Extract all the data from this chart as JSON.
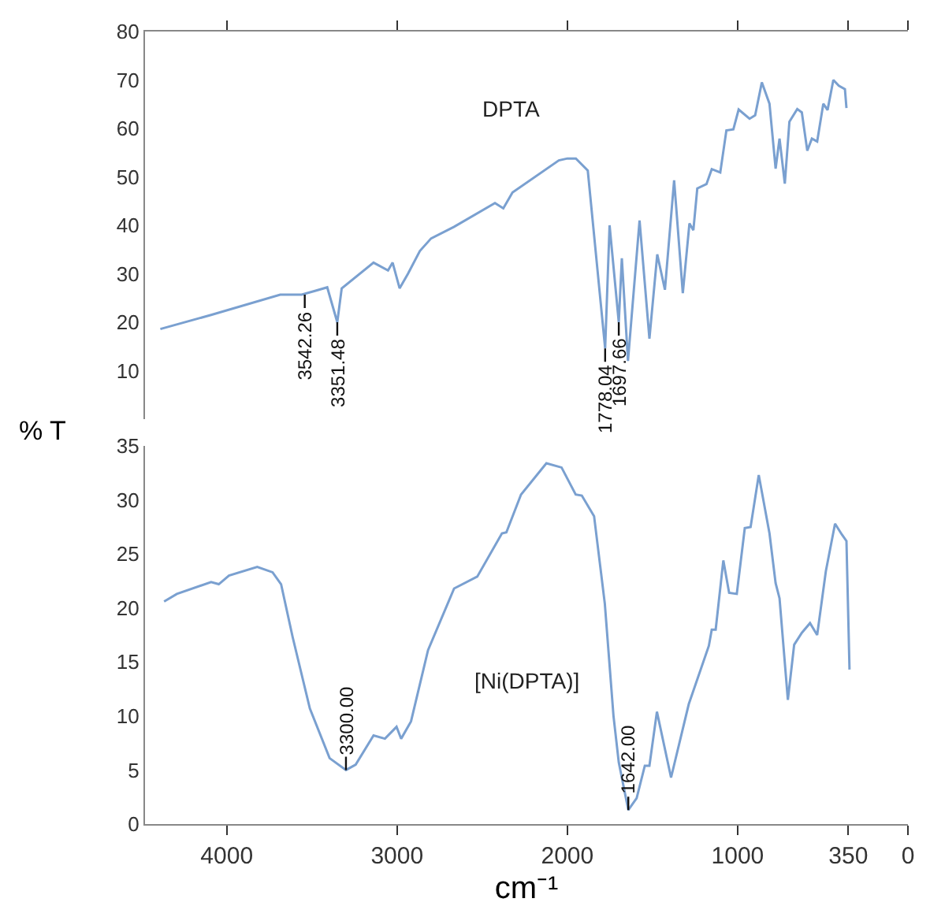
{
  "chart_data": [
    {
      "type": "line",
      "tick_labels": "y",
      "grid": false,
      "marker": "none",
      "line_style": "solid",
      "xlim": [
        4480,
        0
      ],
      "xticks": [
        4000,
        3000,
        2000,
        1000,
        350,
        0
      ],
      "ylim": [
        0,
        80
      ],
      "yticks": [
        10,
        20,
        30,
        40,
        50,
        60,
        70,
        80
      ],
      "annotations": [
        "DPTA",
        {
          "text": "3542.26",
          "x": 3542,
          "y": 25.7
        },
        {
          "text": "3351.48",
          "x": 3351,
          "y": 20
        },
        {
          "text": "1778.04",
          "x": 1778,
          "y": 14.6
        },
        {
          "text": "1697.66",
          "x": 1698,
          "y": 20
        }
      ],
      "series": [
        {
          "color": "#7aa0d0",
          "x": [
            4390,
            4092,
            3686,
            3560,
            3478,
            3410,
            3351,
            3325,
            3138,
            3053,
            3026,
            2985,
            2936,
            2866,
            2800,
            2665,
            2425,
            2376,
            2322,
            2050,
            2000,
            1950,
            1880,
            1778,
            1752,
            1698,
            1680,
            1644,
            1576,
            1518,
            1472,
            1427,
            1373,
            1322,
            1283,
            1260,
            1237,
            1183,
            1152,
            1102,
            1066,
            1025,
            994,
            930,
            897,
            858,
            813,
            777,
            754,
            723,
            696,
            650,
            623,
            591,
            564,
            533,
            497,
            472,
            438,
            406,
            370,
            361
          ],
          "values": [
            18.6,
            21.5,
            25.7,
            25.7,
            26.5,
            27.2,
            20,
            27,
            32.3,
            30.7,
            32.3,
            27,
            30,
            34.7,
            37.3,
            39.7,
            44.6,
            43.5,
            46.8,
            53.4,
            53.8,
            53.8,
            51.3,
            14.6,
            40,
            20,
            33.2,
            12,
            41,
            16.6,
            34,
            26.7,
            49.3,
            26,
            40.4,
            39,
            47.6,
            48.5,
            51.6,
            50.9,
            59.6,
            59.8,
            63.9,
            62,
            62.7,
            69.5,
            65.1,
            51.7,
            57.9,
            48.6,
            61.4,
            64,
            63.3,
            55.4,
            57.9,
            57.3,
            65.1,
            63.8,
            70,
            68.8,
            68.1,
            64.2
          ]
        }
      ]
    },
    {
      "type": "line",
      "grid": false,
      "marker": "none",
      "line_style": "solid",
      "xlabel": "cm⁻¹",
      "ylabel": "% T",
      "xlim": [
        4480,
        0
      ],
      "xticks": [
        4000,
        3000,
        2000,
        1000,
        350,
        0
      ],
      "ylim": [
        0,
        35
      ],
      "yticks": [
        0,
        5,
        10,
        15,
        20,
        25,
        30,
        35
      ],
      "annotations": [
        "[Ni(DPTA)]",
        {
          "text": "3300.00",
          "x": 3300,
          "y": 5
        },
        {
          "text": "1642.00",
          "x": 1642,
          "y": 1.3
        }
      ],
      "series": [
        {
          "color": "#7aa0d0",
          "x": [
            4368,
            4293,
            4092,
            4047,
            3987,
            3821,
            3731,
            3681,
            3613,
            3512,
            3396,
            3300,
            3243,
            3138,
            3071,
            3003,
            2976,
            2918,
            2818,
            2665,
            2529,
            2384,
            2358,
            2272,
            2123,
            2034,
            1951,
            1915,
            1843,
            1780,
            1729,
            1698,
            1642,
            1593,
            1545,
            1518,
            1474,
            1391,
            1287,
            1169,
            1152,
            1129,
            1084,
            1050,
            1005,
            958,
            924,
            876,
            813,
            777,
            754,
            705,
            668,
            623,
            575,
            533,
            482,
            428,
            388,
            361,
            343
          ],
          "values": [
            20.6,
            21.3,
            22.4,
            22.2,
            23,
            23.8,
            23.3,
            22.2,
            17.3,
            10.7,
            6.1,
            5,
            5.5,
            8.2,
            7.9,
            9,
            7.9,
            9.5,
            16.1,
            21.8,
            22.9,
            26.9,
            27,
            30.5,
            33.4,
            33,
            30.5,
            30.4,
            28.5,
            20.4,
            10,
            5.7,
            1.3,
            2.4,
            5.4,
            5.4,
            10.4,
            4.3,
            11.1,
            16.5,
            18,
            18,
            24.4,
            21.4,
            21.3,
            27.4,
            27.5,
            32.3,
            26.9,
            22.3,
            20.9,
            11.5,
            16.6,
            17.7,
            18.6,
            17.5,
            23.4,
            27.8,
            26.8,
            26.2,
            14.3
          ]
        }
      ]
    }
  ]
}
